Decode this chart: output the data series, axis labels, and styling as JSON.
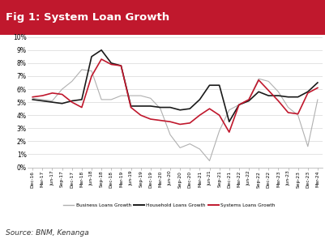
{
  "title": "Fig 1: System Loan Growth",
  "title_bg": "#c0182d",
  "title_color": "#ffffff",
  "source_text": "Source: BNM, Kenanga",
  "ylim": [
    0,
    10
  ],
  "yticks": [
    0,
    1,
    2,
    3,
    4,
    5,
    6,
    7,
    8,
    9,
    10
  ],
  "ytick_labels": [
    "0%",
    "1%",
    "2%",
    "3%",
    "4%",
    "5%",
    "6%",
    "7%",
    "8%",
    "9%",
    "10%"
  ],
  "xtick_labels": [
    "Dec-16",
    "Mar-17",
    "Jun-17",
    "Sep-17",
    "Dec-17",
    "Mar-18",
    "Jun-18",
    "Sep-18",
    "Dec-18",
    "Mar-19",
    "Jun-19",
    "Sep-19",
    "Dec-19",
    "Mar-20",
    "Jun-20",
    "Sep-20",
    "Dec-20",
    "Mar-21",
    "Jun-21",
    "Sep-21",
    "Dec-21",
    "Mar-22",
    "Jun-22",
    "Sep-22",
    "Dec-22",
    "Mar-23",
    "Jun-23",
    "Sep-23",
    "Dec-23",
    "Mar-24"
  ],
  "business_loans": [
    5.3,
    5.2,
    5.1,
    6.0,
    6.6,
    7.5,
    7.4,
    5.2,
    5.2,
    5.5,
    5.5,
    5.5,
    5.3,
    4.5,
    2.5,
    1.5,
    1.8,
    1.4,
    0.5,
    2.8,
    4.4,
    4.8,
    5.2,
    6.8,
    6.6,
    5.8,
    4.6,
    4.0,
    1.6,
    5.2
  ],
  "household_loans": [
    5.2,
    5.1,
    5.0,
    4.9,
    5.1,
    5.2,
    8.5,
    9.0,
    8.0,
    7.8,
    4.7,
    4.7,
    4.7,
    4.6,
    4.6,
    4.4,
    4.5,
    5.2,
    6.3,
    6.3,
    3.5,
    4.8,
    5.1,
    5.8,
    5.5,
    5.5,
    5.4,
    5.4,
    5.8,
    6.5
  ],
  "systems_loans": [
    5.4,
    5.5,
    5.7,
    5.6,
    5.0,
    4.6,
    7.0,
    8.3,
    7.9,
    7.8,
    4.6,
    4.0,
    3.7,
    3.6,
    3.5,
    3.3,
    3.4,
    4.0,
    4.5,
    4.0,
    2.7,
    4.8,
    5.2,
    6.7,
    5.9,
    5.1,
    4.2,
    4.1,
    5.7,
    6.1
  ],
  "business_color": "#b0b0b0",
  "household_color": "#1a1a1a",
  "systems_color": "#c0182d",
  "bg_color": "#ffffff",
  "grid_color": "#d8d8d8"
}
